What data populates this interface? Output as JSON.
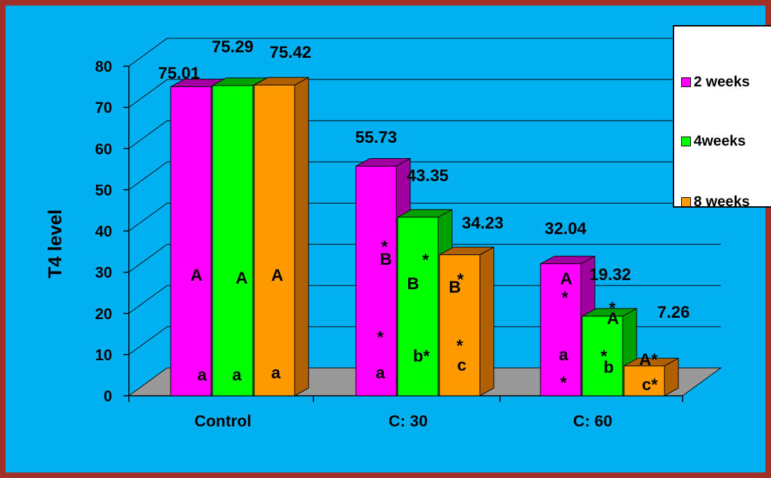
{
  "chart_data": {
    "type": "bar",
    "title": "",
    "xlabel": "",
    "ylabel": "T4  level",
    "ylim": [
      0,
      80
    ],
    "yticks": [
      "0",
      "10",
      "20",
      "30",
      "40",
      "50",
      "60",
      "70",
      "80"
    ],
    "grid": true,
    "legend_position": "right",
    "categories": [
      "Control",
      "C: 30",
      "C: 60"
    ],
    "series": [
      {
        "name": "2 weeks",
        "color": "#ff00ff",
        "side_color": "#a000a0",
        "values": [
          75.01,
          55.73,
          32.04
        ],
        "value_labels": [
          "75.01",
          "55.73",
          "32.04"
        ],
        "annotations": [
          [
            "A",
            "a"
          ],
          [
            "*",
            "B",
            "*",
            "a"
          ],
          [
            "A",
            "*",
            "a",
            "*"
          ]
        ]
      },
      {
        "name": "4weeks",
        "color": "#00ff00",
        "side_color": "#00a000",
        "values": [
          75.29,
          43.35,
          19.32
        ],
        "value_labels": [
          "75.29",
          "43.35",
          "19.32"
        ],
        "annotations": [
          [
            "A",
            "a"
          ],
          [
            "*",
            "B",
            "b*"
          ],
          [
            "*",
            "A",
            "*",
            "b"
          ]
        ]
      },
      {
        "name": "8 weeks",
        "color": "#ff9900",
        "side_color": "#b06000",
        "values": [
          75.42,
          34.23,
          7.26
        ],
        "value_labels": [
          "75.42",
          "34.23",
          "7.26"
        ],
        "annotations": [
          [
            "A",
            "a"
          ],
          [
            "*",
            "B",
            "*",
            "c"
          ],
          [
            "A*",
            "c*"
          ]
        ]
      }
    ]
  }
}
